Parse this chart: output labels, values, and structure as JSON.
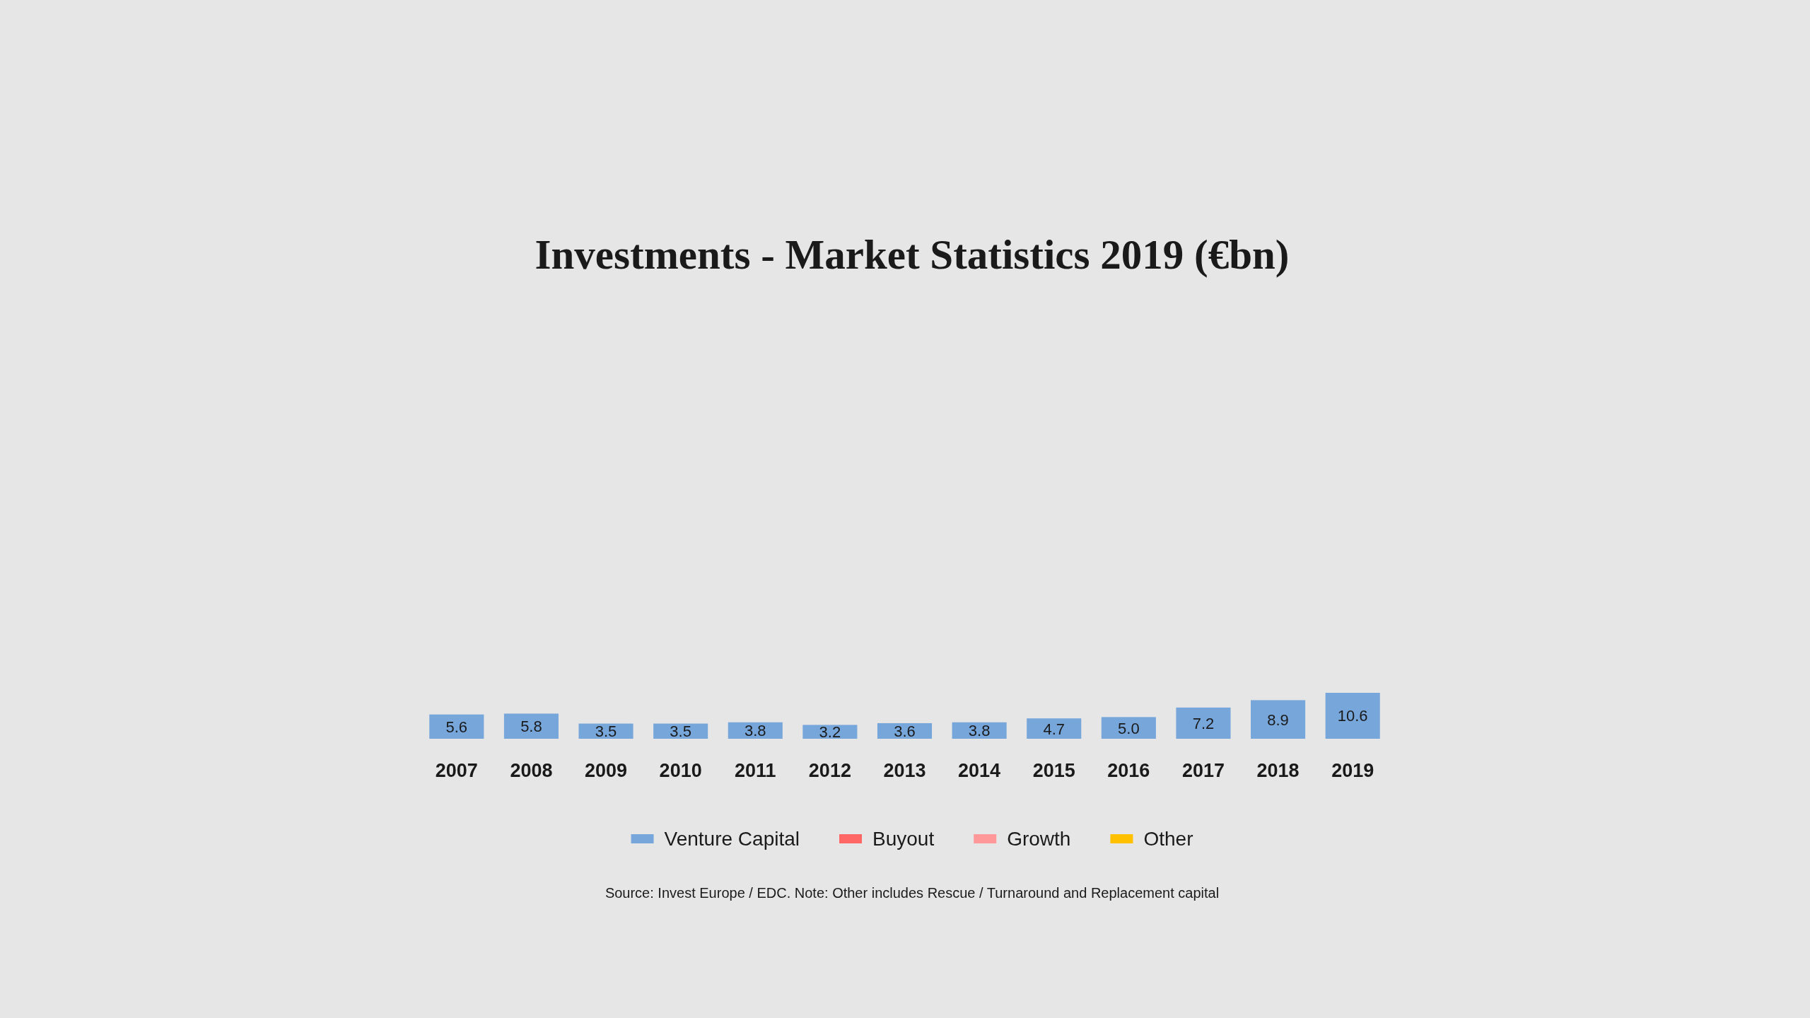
{
  "chart_data": {
    "type": "bar",
    "title": "Investments - Market Statistics 2019 (€bn)",
    "categories": [
      "2007",
      "2008",
      "2009",
      "2010",
      "2011",
      "2012",
      "2013",
      "2014",
      "2015",
      "2016",
      "2017",
      "2018",
      "2019"
    ],
    "series": [
      {
        "name": "Venture Capital",
        "color": "#77a6db",
        "values": [
          5.6,
          5.8,
          3.5,
          3.5,
          3.8,
          3.2,
          3.6,
          3.8,
          4.7,
          5.0,
          7.2,
          8.9,
          10.6
        ],
        "value_labels": [
          "5.6",
          "5.8",
          "3.5",
          "3.5",
          "3.8",
          "3.2",
          "3.6",
          "3.8",
          "4.7",
          "5.0",
          "7.2",
          "8.9",
          "10.6"
        ]
      },
      {
        "name": "Buyout",
        "color": "#ff6666",
        "values": [
          null,
          null,
          null,
          null,
          null,
          null,
          null,
          null,
          null,
          null,
          null,
          null,
          null
        ]
      },
      {
        "name": "Growth",
        "color": "#ff9999",
        "values": [
          null,
          null,
          null,
          null,
          null,
          null,
          null,
          null,
          null,
          null,
          null,
          null,
          null
        ]
      },
      {
        "name": "Other",
        "color": "#ffc000",
        "values": [
          null,
          null,
          null,
          null,
          null,
          null,
          null,
          null,
          null,
          null,
          null,
          null,
          null
        ]
      }
    ],
    "stacked": true,
    "tick_labels": "x",
    "legend": "bottom",
    "annotations": [
      "Source: Invest Europe / EDC. Note: Other includes Rescue / Turnaround and Replacement capital"
    ]
  }
}
